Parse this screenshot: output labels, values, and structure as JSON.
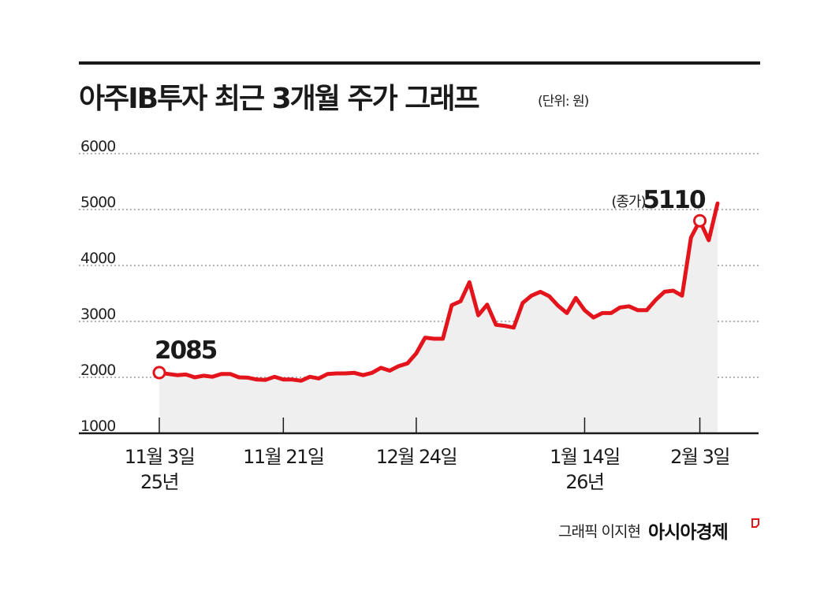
{
  "header": {
    "title": "아주IB투자 최근 3개월 주가 그래프",
    "unit": "(단위: 원)"
  },
  "footer": {
    "credit": "그래픽 이지현",
    "brand": "아시아경제"
  },
  "colors": {
    "line": "#e3141b",
    "area": "#efefef",
    "grid": "#888888",
    "axis": "#1a1a1a"
  },
  "chart_data": {
    "type": "line",
    "title": "아주IB투자 최근 3개월 주가 그래프",
    "unit": "(단위: 원)",
    "xlabel": "",
    "ylabel": "",
    "ylim": [
      1000,
      6000
    ],
    "yticks": [
      1000,
      2000,
      3000,
      4000,
      5000,
      6000
    ],
    "grid": true,
    "area_fill": true,
    "x_ticks": [
      {
        "index": 0,
        "label": "11월 3일",
        "sublabel": "25년"
      },
      {
        "index": 14,
        "label": "11월 21일",
        "sublabel": ""
      },
      {
        "index": 29,
        "label": "12월 24일",
        "sublabel": ""
      },
      {
        "index": 48,
        "label": "1월 14일",
        "sublabel": "26년"
      },
      {
        "index": 61,
        "label": "2월 3일",
        "sublabel": ""
      }
    ],
    "annotations": [
      {
        "index": 0,
        "text": "2085"
      },
      {
        "index": 61,
        "prefix": "(종가)",
        "text": "5110"
      }
    ],
    "series": [
      {
        "values": [
          2085,
          2060,
          2040,
          2050,
          2000,
          2030,
          2010,
          2060,
          2060,
          2000,
          1995,
          1960,
          1955,
          2010,
          1960,
          1960,
          1940,
          2010,
          1980,
          2060,
          2070,
          2070,
          2080,
          2040,
          2080,
          2170,
          2120,
          2200,
          2250,
          2430,
          2710,
          2690,
          2690,
          3290,
          3360,
          3700,
          3110,
          3300,
          2940,
          2920,
          2890,
          3330,
          3460,
          3530,
          3450,
          3280,
          3150,
          3420,
          3200,
          3070,
          3150,
          3150,
          3250,
          3270,
          3200,
          3200,
          3380,
          3530,
          3550,
          3460,
          4500,
          4800,
          4450,
          5110
        ]
      }
    ]
  }
}
